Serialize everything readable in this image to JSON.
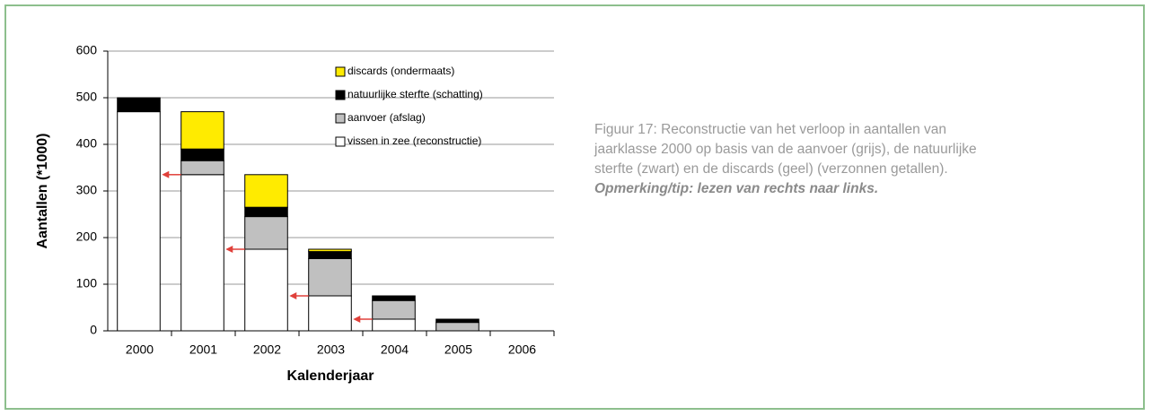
{
  "chart_data": {
    "type": "stacked_bar",
    "y_label": "Aantallen (*1000)",
    "x_label": "Kalenderjaar",
    "categories": [
      "2000",
      "2001",
      "2002",
      "2003",
      "2004",
      "2005",
      "2006"
    ],
    "series": [
      {
        "name": "vissen in zee (reconstructie)",
        "color": "#ffffff",
        "values": [
          470,
          335,
          175,
          75,
          25,
          0,
          0
        ]
      },
      {
        "name": "aanvoer (afslag)",
        "color": "#c0c0c0",
        "values": [
          0,
          30,
          70,
          80,
          40,
          18,
          0
        ]
      },
      {
        "name": "natuurlijke sterfte (schatting)",
        "color": "#000000",
        "values": [
          30,
          25,
          20,
          15,
          10,
          7,
          0
        ]
      },
      {
        "name": "discards (ondermaats)",
        "color": "#ffeb00",
        "values": [
          0,
          80,
          70,
          5,
          0,
          0,
          0
        ]
      }
    ],
    "arrow_color": "#e0403a",
    "ylim": [
      0,
      600
    ],
    "yticks": [
      0,
      100,
      200,
      300,
      400,
      500,
      600
    ],
    "grid": true
  },
  "caption": {
    "text": "Figuur 17: Reconstructie van het verloop in aantallen van jaarklasse 2000 op basis van de aanvoer (grijs), de natuurlijke sterfte (zwart) en de discards (geel) (verzonnen getallen).",
    "emphasis": "Opmerking/tip: lezen van rechts naar links."
  }
}
